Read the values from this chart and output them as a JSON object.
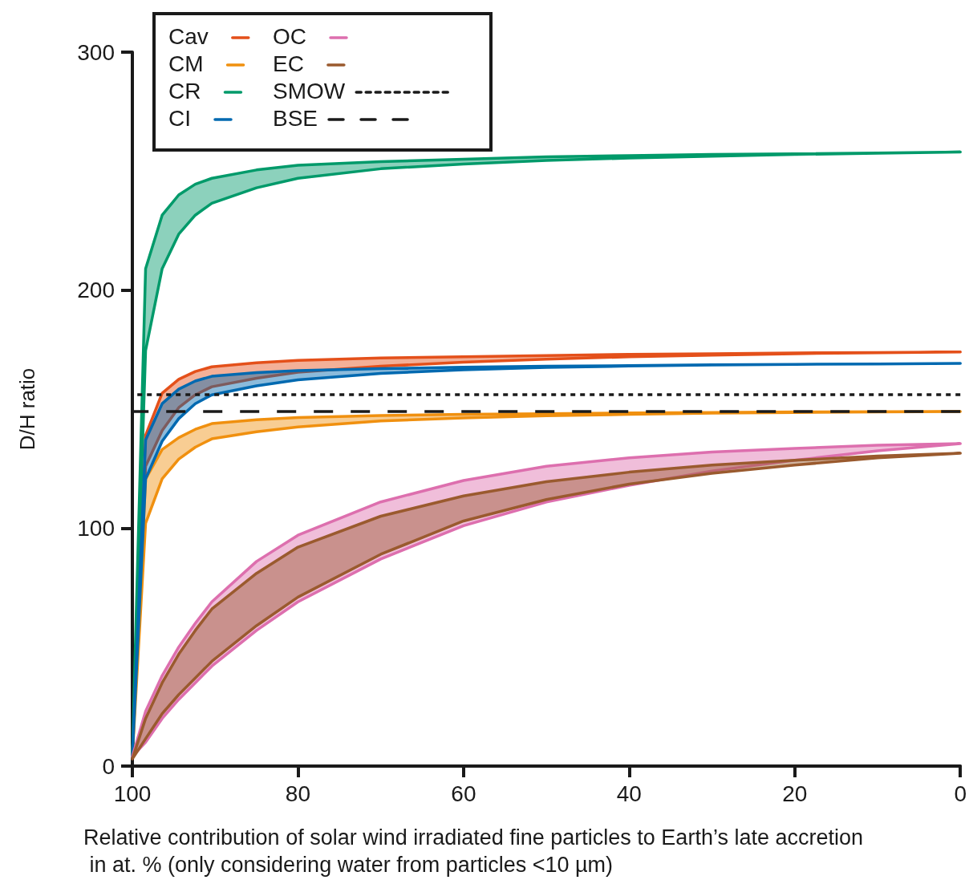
{
  "chart_data": {
    "type": "line",
    "xlabel": "Relative contribution of solar wind irradiated fine particles to Earth’s late accretion in at. % (only considering water from particles <10 µm)",
    "ylabel": "D/H ratio",
    "x": [
      100,
      98.4,
      96.4,
      94.4,
      92.4,
      90.4,
      85,
      80,
      70,
      60,
      50,
      40,
      30,
      20,
      10,
      0
    ],
    "series": [
      {
        "name": "Cav",
        "color": "#e4501a",
        "values": [
          null,
          null,
          null,
          null,
          null,
          null,
          null,
          null,
          null,
          null,
          null,
          null,
          null,
          null,
          null,
          null
        ],
        "lower": [
          4,
          126,
          141,
          150.6,
          156,
          159.4,
          163,
          165.5,
          168,
          169.7,
          171,
          172,
          172.7,
          173.3,
          173.7,
          174
        ],
        "upper": [
          4,
          139,
          156.7,
          162.5,
          165.8,
          167.8,
          169.5,
          170.5,
          171.5,
          172,
          172.5,
          173,
          173.3,
          173.6,
          173.8,
          174
        ]
      },
      {
        "name": "CM",
        "color": "#f0900f",
        "values": [
          null,
          null,
          null,
          null,
          null,
          null,
          null,
          null,
          null,
          null,
          null,
          null,
          null,
          null,
          null,
          null
        ],
        "lower": [
          4,
          102,
          120.7,
          129,
          134,
          137.5,
          140.5,
          142.5,
          145,
          146.3,
          147.2,
          147.8,
          148.3,
          148.6,
          148.8,
          149
        ],
        "upper": [
          4,
          120.6,
          133,
          138,
          141.5,
          143.9,
          145.5,
          146.5,
          147.3,
          147.8,
          148.1,
          148.4,
          148.6,
          148.8,
          148.9,
          149
        ]
      },
      {
        "name": "CR",
        "color": "#009a6a",
        "values": [
          null,
          null,
          null,
          null,
          null,
          null,
          null,
          null,
          null,
          null,
          null,
          null,
          null,
          null,
          null,
          null
        ],
        "lower": [
          4,
          174.6,
          209,
          223.5,
          231.5,
          236.5,
          243,
          247,
          251,
          253,
          254.5,
          255.5,
          256.3,
          257,
          257.5,
          258
        ],
        "upper": [
          4,
          209,
          231.5,
          240,
          244.5,
          247,
          250.5,
          252.5,
          254,
          255,
          256,
          256.5,
          257,
          257.3,
          257.6,
          258
        ]
      },
      {
        "name": "CI",
        "color": "#0069b0",
        "values": [
          null,
          null,
          null,
          null,
          null,
          null,
          null,
          null,
          null,
          null,
          null,
          null,
          null,
          null,
          null,
          null
        ],
        "lower": [
          4,
          120.7,
          136.5,
          146,
          152.3,
          156,
          159.8,
          162.3,
          165,
          166.5,
          167.5,
          168.1,
          168.5,
          168.8,
          169,
          169.2
        ],
        "upper": [
          4,
          137,
          152.3,
          158.4,
          161.8,
          163.8,
          165.3,
          166.2,
          167,
          167.6,
          168,
          168.3,
          168.6,
          168.8,
          169,
          169.2
        ]
      },
      {
        "name": "OC",
        "color": "#dd6fae",
        "values": [
          null,
          null,
          null,
          null,
          null,
          null,
          null,
          null,
          null,
          null,
          null,
          null,
          null,
          null,
          null,
          null
        ],
        "lower": [
          4,
          10,
          20,
          28,
          35,
          42,
          57,
          69,
          87,
          101,
          111,
          118,
          124,
          128.5,
          132.5,
          135.5
        ],
        "upper": [
          4,
          23,
          38,
          50,
          60,
          69,
          86,
          97,
          111,
          120,
          126,
          129.5,
          132,
          133.5,
          134.8,
          135.5
        ]
      },
      {
        "name": "EC",
        "color": "#9a5a2e",
        "values": [
          null,
          null,
          null,
          null,
          null,
          null,
          null,
          null,
          null,
          null,
          null,
          null,
          null,
          null,
          null,
          null
        ],
        "lower": [
          3,
          11.5,
          22,
          30,
          37,
          44,
          59,
          71,
          89,
          103,
          112,
          118.5,
          123,
          126.5,
          129.5,
          131.5
        ],
        "upper": [
          3,
          20,
          35,
          47,
          57,
          66,
          81,
          92,
          105,
          113.5,
          119.5,
          123.5,
          126.5,
          128.5,
          130.3,
          131.5
        ]
      }
    ],
    "ref_lines": [
      {
        "axis": "y",
        "value": 156,
        "label": "SMOW",
        "line_style": "dotted",
        "color": "#1a1a1a"
      },
      {
        "axis": "y",
        "value": 149,
        "label": "BSE",
        "line_style": "dashed",
        "color": "#1a1a1a"
      }
    ],
    "xlim": [
      100,
      0
    ],
    "xticks": [
      100,
      80,
      60,
      40,
      20,
      0
    ],
    "ylim": [
      0,
      300
    ],
    "yticks": [
      0,
      100,
      200,
      300
    ],
    "grid": false,
    "legend": "top left"
  }
}
